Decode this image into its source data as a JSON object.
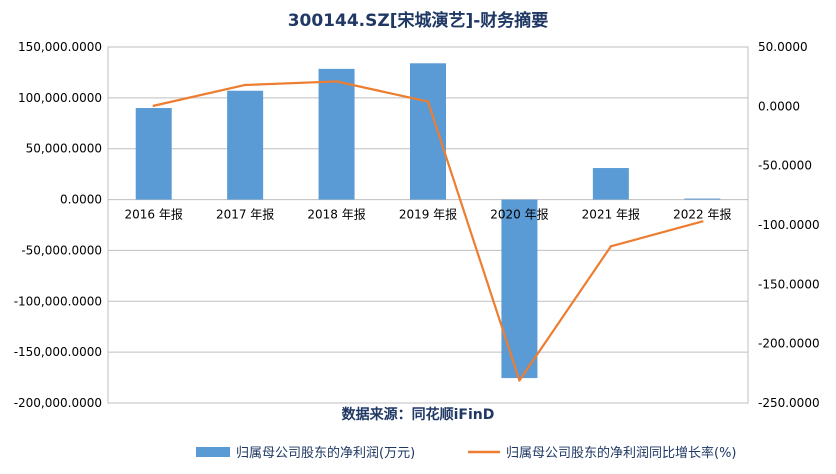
{
  "chart_data": {
    "type": "bar+line",
    "title": "300144.SZ[宋城演艺]-财务摘要",
    "source": "数据来源：同花顺iFinD",
    "categories": [
      "2016 年报",
      "2017 年报",
      "2018 年报",
      "2019 年报",
      "2020 年报",
      "2021 年报",
      "2022 年报"
    ],
    "series": [
      {
        "name": "归属母公司股东的净利润(万元)",
        "type": "bar",
        "axis": "left",
        "color": "#5B9BD5",
        "values": [
          90000,
          107000,
          128500,
          134000,
          -175500,
          31000,
          1000
        ]
      },
      {
        "name": "归属母公司股东的净利润同比增长率(%)",
        "type": "line",
        "axis": "right",
        "color": "#ED7D31",
        "values": [
          0.5,
          18.0,
          21.0,
          4.0,
          -231.0,
          -118.0,
          -97.0
        ]
      }
    ],
    "y_left": {
      "min": -200000,
      "max": 150000,
      "ticks": [
        150000,
        100000,
        50000,
        0,
        -50000,
        -100000,
        -150000,
        -200000
      ],
      "tick_labels": [
        "150,000.0000",
        "100,000.0000",
        "50,000.0000",
        "0.0000",
        "-50,000.0000",
        "-100,000.0000",
        "-150,000.0000",
        "-200,000.0000"
      ]
    },
    "y_right": {
      "min": -250,
      "max": 50,
      "ticks": [
        50,
        0,
        -50,
        -100,
        -150,
        -200,
        -250
      ],
      "tick_labels": [
        "50.0000",
        "0.0000",
        "-50.0000",
        "-100.0000",
        "-150.0000",
        "-200.0000",
        "-250.0000"
      ]
    },
    "grid": true,
    "legend": "bottom"
  }
}
